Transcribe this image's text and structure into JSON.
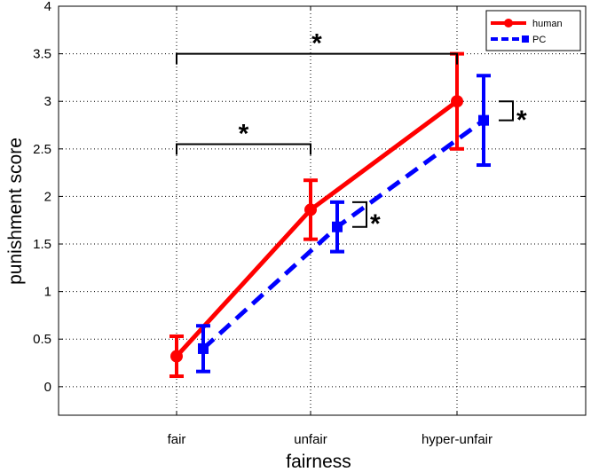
{
  "chart_data": {
    "type": "line",
    "title": "",
    "xlabel": "fairness",
    "ylabel": "punishment score",
    "categories": [
      "fair",
      "unfair",
      "hyper-unfair"
    ],
    "ylim": [
      -0.3,
      4
    ],
    "yticks": [
      0,
      0.5,
      1,
      1.5,
      2,
      2.5,
      3,
      3.5,
      4
    ],
    "ytick_labels": [
      "0",
      "0.5",
      "1",
      "1.5",
      "2",
      "2.5",
      "3",
      "3.5",
      "4"
    ],
    "grid": true,
    "legend_position": "top-right",
    "series": [
      {
        "name": "human",
        "color": "#ff0000",
        "line_style": "solid",
        "marker": "circle",
        "values": [
          0.32,
          1.86,
          3.0
        ],
        "error_low": [
          0.11,
          1.55,
          2.5
        ],
        "error_high": [
          0.53,
          2.17,
          3.5
        ]
      },
      {
        "name": "PC",
        "color": "#0000ff",
        "line_style": "dashed",
        "marker": "square",
        "values": [
          0.4,
          1.68,
          2.8
        ],
        "error_low": [
          0.16,
          1.42,
          2.33
        ],
        "error_high": [
          0.64,
          1.94,
          3.27
        ]
      }
    ],
    "annotations": [
      {
        "type": "bracket",
        "from": "fair",
        "to": "hyper-unfair",
        "y": 3.5,
        "text": "*"
      },
      {
        "type": "bracket",
        "from": "fair",
        "to": "unfair",
        "y": 2.55,
        "text": "*"
      },
      {
        "type": "side-bracket",
        "category": "unfair",
        "y_top": 1.94,
        "y_bottom": 1.68,
        "text": "*"
      },
      {
        "type": "side-bracket",
        "category": "hyper-unfair",
        "y_top": 3.0,
        "y_bottom": 2.8,
        "text": "*"
      }
    ]
  }
}
